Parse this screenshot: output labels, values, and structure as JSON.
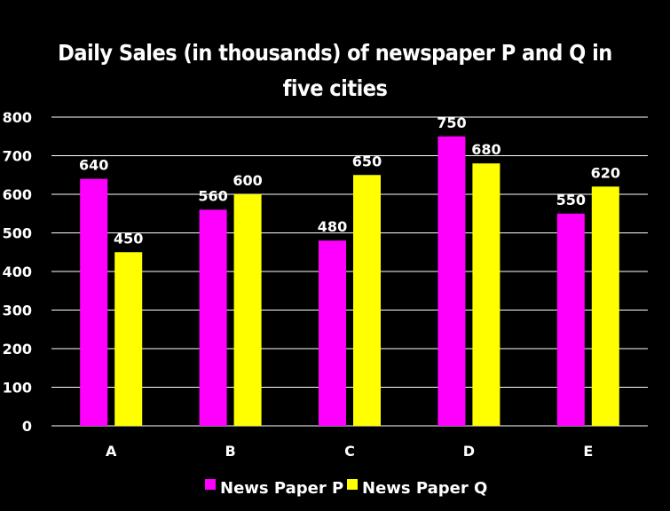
{
  "chart_data": {
    "type": "bar",
    "title": "Daily Sales (in thousands) of newspaper P and Q in five cities",
    "xlabel": "",
    "ylabel": "",
    "categories": [
      "A",
      "B",
      "C",
      "D",
      "E"
    ],
    "series": [
      {
        "name": "News Paper P",
        "values": [
          640,
          560,
          480,
          750,
          550
        ],
        "color": "#ff00ff"
      },
      {
        "name": "News Paper Q",
        "values": [
          450,
          600,
          650,
          680,
          620
        ],
        "color": "#ffff00"
      }
    ],
    "ylim": [
      0,
      800
    ],
    "yticks": [
      0,
      100,
      200,
      300,
      400,
      500,
      600,
      700,
      800
    ],
    "grid": true,
    "legend_position": "bottom",
    "background": "#000000",
    "gridline_color": "#ffffff"
  }
}
